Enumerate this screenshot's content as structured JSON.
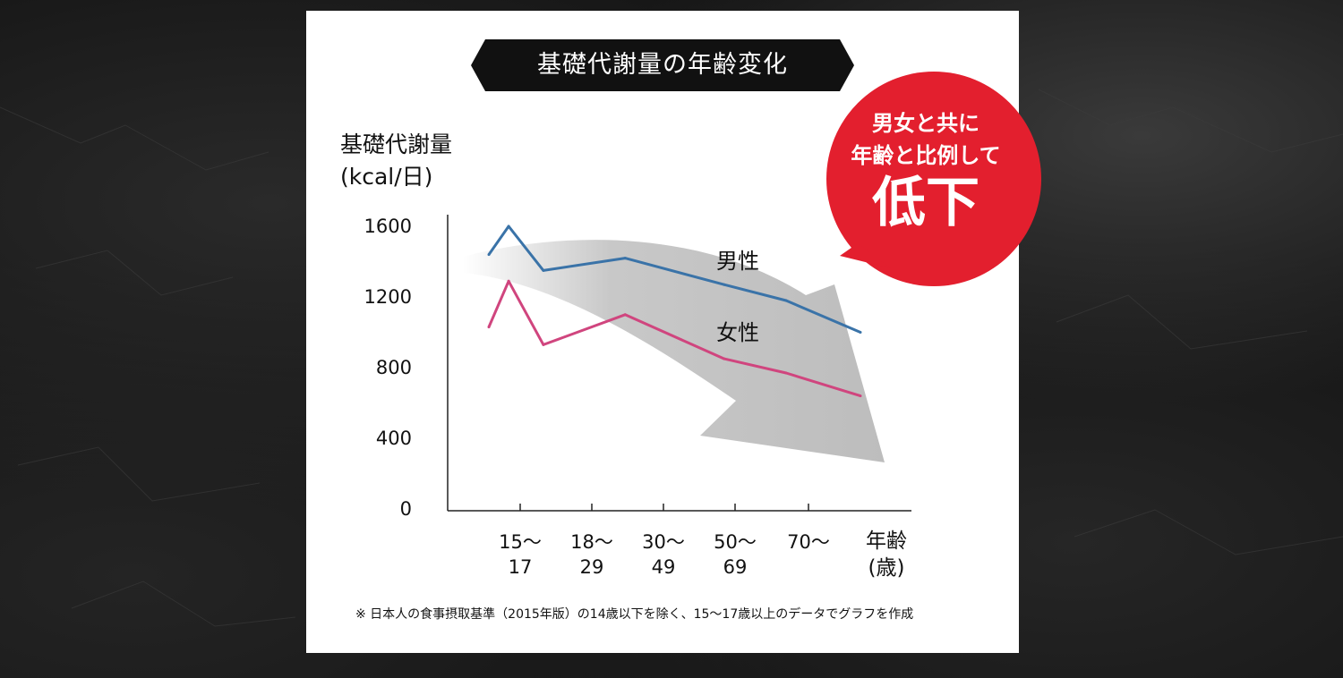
{
  "title": "基礎代謝量の年齢変化",
  "callout": {
    "line1": "男女と共に",
    "line2": "年齢と比例して",
    "big": "低下"
  },
  "footnote": "※ 日本人の食事摂取基準（2015年版）の14歳以下を除く、15〜17歳以上のデータでグラフを作成",
  "colors": {
    "male": "#3a73a8",
    "female": "#d0457e",
    "callout": "#e31f2e",
    "arrow": "#c4c4c4",
    "banner": "#111111"
  },
  "chart_data": {
    "type": "line",
    "ylabel_line1": "基礎代謝量",
    "ylabel_line2": "(kcal/日)",
    "xlabel": "年齢\n(歳)",
    "ylim": [
      0,
      1600
    ],
    "yticks": [
      "0",
      "400",
      "800",
      "1200",
      "1600"
    ],
    "categories": [
      "15〜\n17",
      "18〜\n29",
      "30〜\n49",
      "50〜\n69",
      "70〜"
    ],
    "x": [
      12,
      16,
      23,
      39.5,
      59.5,
      72,
      87
    ],
    "series": [
      {
        "name": "男性",
        "values": [
          1450,
          1610,
          1360,
          1430,
          1280,
          1190,
          1010
        ]
      },
      {
        "name": "女性",
        "values": [
          1040,
          1300,
          940,
          1110,
          860,
          780,
          650
        ]
      }
    ],
    "grid": false
  }
}
